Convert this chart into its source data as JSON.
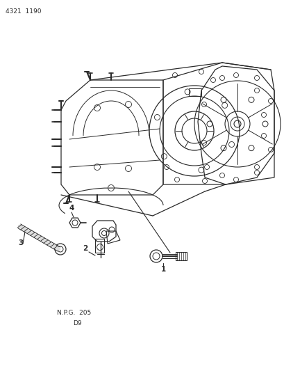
{
  "background_color": "#ffffff",
  "line_color": "#2a2a2a",
  "text_color": "#2a2a2a",
  "top_left_text": "4321  1190",
  "bottom_text_line1": "N.P.G.  205",
  "bottom_text_line2": "D9",
  "part_labels": [
    "1",
    "2",
    "3",
    "4"
  ],
  "figsize": [
    4.1,
    5.33
  ],
  "dpi": 100
}
